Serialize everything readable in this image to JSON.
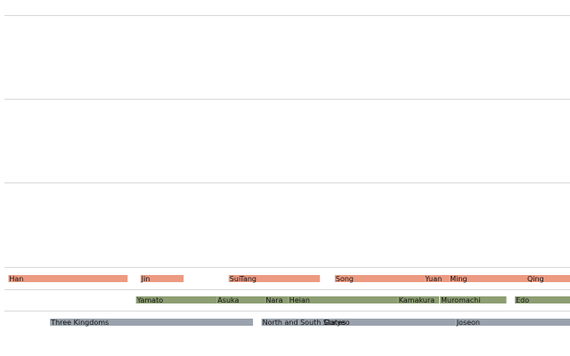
{
  "chart_data": {
    "type": "timeline",
    "title": "",
    "xlabel": "",
    "ylabel": "",
    "xlim": [
      -220,
      1800
    ],
    "grid": true,
    "lanes": [
      {
        "name": "",
        "color": "#ec9a82",
        "periods": [
          {
            "label": "Han",
            "start": -206,
            "end": 220
          },
          {
            "label": "Jin",
            "start": 266,
            "end": 420
          },
          {
            "label": "Sui",
            "start": 581,
            "end": 618
          },
          {
            "label": "Tang",
            "start": 618,
            "end": 907
          },
          {
            "label": "Song",
            "start": 960,
            "end": 1279
          },
          {
            "label": "Yuan",
            "start": 1279,
            "end": 1368
          },
          {
            "label": "Ming",
            "start": 1368,
            "end": 1644
          },
          {
            "label": "Qing",
            "start": 1644,
            "end": 1912
          }
        ]
      },
      {
        "name": "",
        "color": "#8c9e72",
        "periods": [
          {
            "label": "Yamato",
            "start": 250,
            "end": 538
          },
          {
            "label": "Asuka",
            "start": 538,
            "end": 710
          },
          {
            "label": "Nara",
            "start": 710,
            "end": 794
          },
          {
            "label": "Heian",
            "start": 794,
            "end": 1185
          },
          {
            "label": "Kamakura",
            "start": 1185,
            "end": 1333
          },
          {
            "label": "Muromachi",
            "start": 1336,
            "end": 1573
          },
          {
            "label": "Edo",
            "start": 1603,
            "end": 1868
          }
        ]
      },
      {
        "name": "",
        "color": "#9aa3ad",
        "periods": [
          {
            "label": "Three Kingdoms",
            "start": -57,
            "end": 668
          },
          {
            "label": "North and South States",
            "start": 698,
            "end": 926
          },
          {
            "label": "Goryeo",
            "start": 918,
            "end": 1392
          },
          {
            "label": "Joseon",
            "start": 1392,
            "end": 1897
          }
        ]
      }
    ]
  }
}
